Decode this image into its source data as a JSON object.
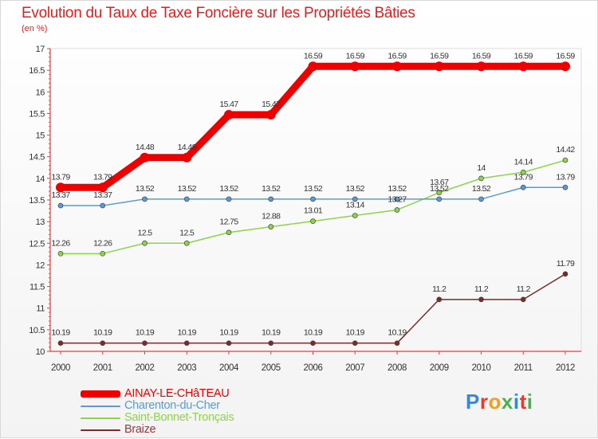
{
  "title": "Evolution du Taux de Taxe Foncière sur les Propriétés Bâties",
  "unit_label": "(en %)",
  "logo": {
    "text": "Proxiti",
    "letter_colors": [
      "#3a86d6",
      "#e83a2f",
      "#f0a020",
      "#4caf50",
      "#3a86d6",
      "#e83a2f",
      "#4caf50"
    ]
  },
  "chart_data": {
    "type": "line",
    "title": "Evolution du Taux de Taxe Foncière sur les Propriétés Bâties",
    "ylabel": "(en %)",
    "ylim": [
      10,
      17
    ],
    "yticks": [
      "10",
      "10.5",
      "11",
      "11.5",
      "12",
      "12.5",
      "13",
      "13.5",
      "14",
      "14.5",
      "15",
      "15.5",
      "16",
      "16.5",
      "17"
    ],
    "x": [
      "2000",
      "2001",
      "2002",
      "2003",
      "2004",
      "2005",
      "2006",
      "2007",
      "2008",
      "2009",
      "2010",
      "2011",
      "2012"
    ],
    "grid": false,
    "legend_position": "bottom-left",
    "series": [
      {
        "name": "AINAY-LE-CHâTEAU",
        "color": "#ee0000",
        "values": [
          13.79,
          13.79,
          14.48,
          14.48,
          15.47,
          15.47,
          16.59,
          16.59,
          16.59,
          16.59,
          16.59,
          16.59,
          16.59
        ],
        "labels": [
          "13.79",
          "13.79",
          "14.48",
          "14.48",
          "15.47",
          "15.47",
          "16.59",
          "16.59",
          "16.59",
          "16.59",
          "16.59",
          "16.59",
          "16.59"
        ]
      },
      {
        "name": "Charenton-du-Cher",
        "color": "#5b9bd5",
        "values": [
          13.37,
          13.37,
          13.52,
          13.52,
          13.52,
          13.52,
          13.52,
          13.52,
          13.52,
          13.52,
          13.52,
          13.79,
          13.79
        ],
        "labels": [
          "13.37",
          "13.37",
          "13.52",
          "13.52",
          "13.52",
          "13.52",
          "13.52",
          "13.52",
          "13.52",
          "13.52",
          "13.52",
          "13.79",
          "13.79"
        ]
      },
      {
        "name": "Saint-Bonnet-Tronçais",
        "color": "#8ed44a",
        "values": [
          12.26,
          12.26,
          12.5,
          12.5,
          12.75,
          12.88,
          13.01,
          13.14,
          13.27,
          13.67,
          14,
          14.14,
          14.42
        ],
        "labels": [
          "12.26",
          "12.26",
          "12.5",
          "12.5",
          "12.75",
          "12.88",
          "13.01",
          "13.14",
          "13.27",
          "13.67",
          "14",
          "14.14",
          "14.42"
        ]
      },
      {
        "name": "Braize",
        "color": "#7a2a2a",
        "values": [
          10.19,
          10.19,
          10.19,
          10.19,
          10.19,
          10.19,
          10.19,
          10.19,
          10.19,
          11.2,
          11.2,
          11.2,
          11.79
        ],
        "labels": [
          "10.19",
          "10.19",
          "10.19",
          "10.19",
          "10.19",
          "10.19",
          "10.19",
          "10.19",
          "10.19",
          "11.2",
          "11.2",
          "11.2",
          "11.79"
        ]
      }
    ]
  }
}
